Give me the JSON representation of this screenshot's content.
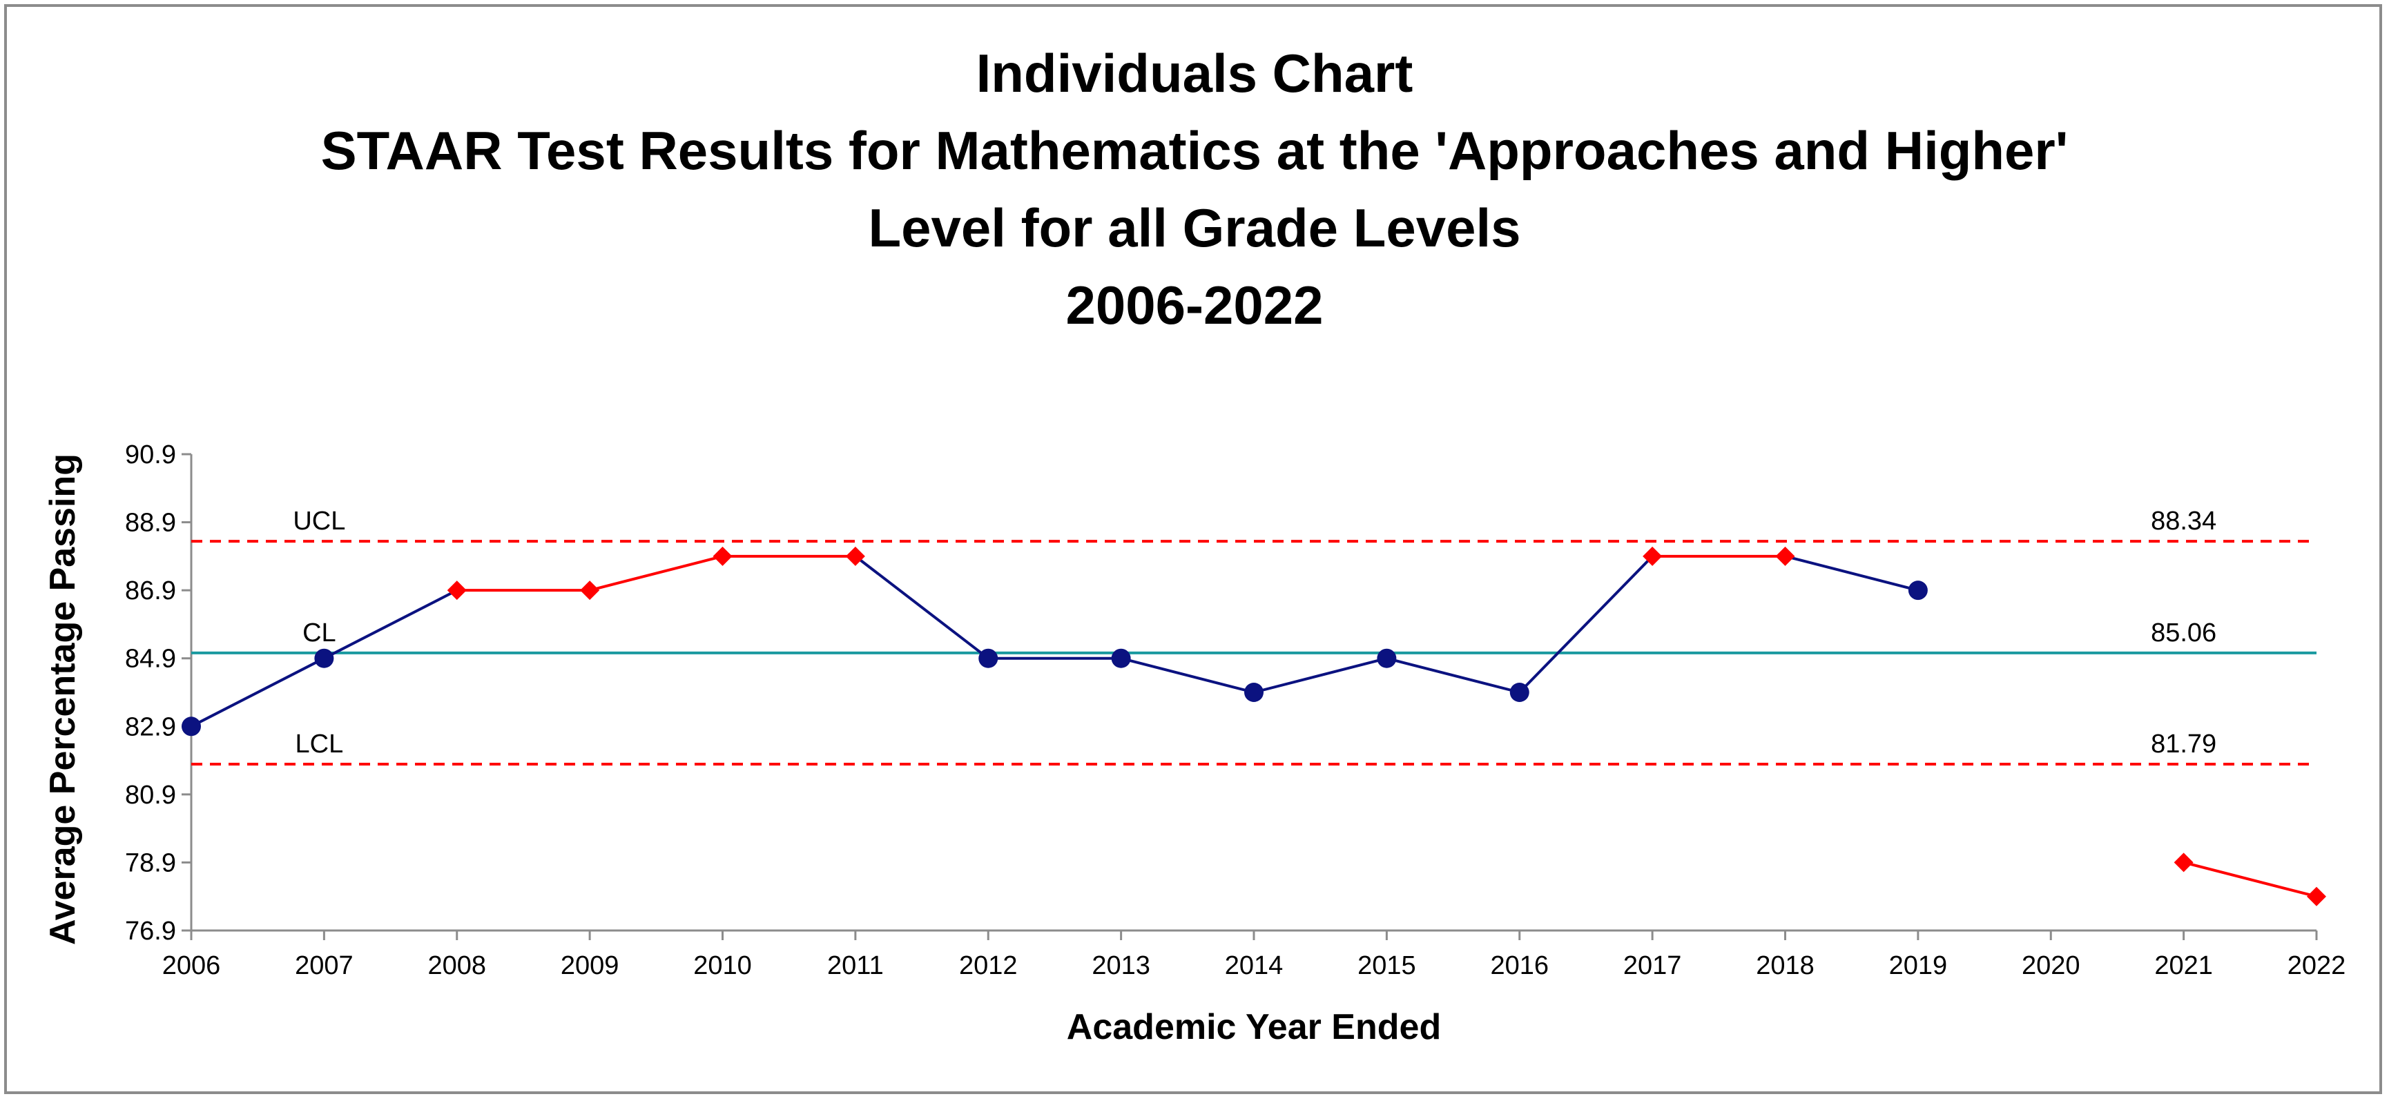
{
  "chart_data": {
    "type": "line",
    "chart_kind": "Individuals control chart",
    "title_lines": [
      "Individuals Chart",
      "STAAR Test Results for Mathematics at the 'Approaches and Higher'",
      "Level for all Grade Levels",
      "2006-2022"
    ],
    "xlabel": "Academic Year Ended",
    "ylabel": "Average Percentage Passing",
    "categories": [
      "2006",
      "2007",
      "2008",
      "2009",
      "2010",
      "2011",
      "2012",
      "2013",
      "2014",
      "2015",
      "2016",
      "2017",
      "2018",
      "2019",
      "2020",
      "2021",
      "2022"
    ],
    "ylim": [
      76.9,
      90.9
    ],
    "yticks": [
      "90.9",
      "88.9",
      "86.9",
      "84.9",
      "82.9",
      "80.9",
      "78.9",
      "76.9"
    ],
    "yticks_values": [
      90.9,
      88.9,
      86.9,
      84.9,
      82.9,
      80.9,
      78.9,
      76.9
    ],
    "grid": false,
    "values": [
      82.9,
      84.9,
      86.9,
      86.9,
      87.9,
      87.9,
      84.9,
      84.9,
      83.9,
      84.9,
      83.9,
      87.9,
      87.9,
      86.9,
      null,
      78.9,
      77.9
    ],
    "point_signals": [
      "in",
      "in",
      "signal",
      "signal",
      "signal",
      "signal",
      "in",
      "in",
      "in",
      "in",
      "in",
      "signal",
      "signal",
      "in",
      null,
      "signal",
      "signal"
    ],
    "control_limits": [
      {
        "label": "UCL",
        "value": 88.34,
        "value_label": "88.34",
        "style": "dashed",
        "color": "#ff0000"
      },
      {
        "label": "CL",
        "value": 85.06,
        "value_label": "85.06",
        "style": "solid",
        "color": "#1a9aa0"
      },
      {
        "label": "LCL",
        "value": 81.79,
        "value_label": "81.79",
        "style": "dashed",
        "color": "#ff0000"
      }
    ],
    "colors": {
      "in_control": "#0b1280",
      "signal": "#ff0000",
      "axis": "#8c8c8c"
    }
  }
}
